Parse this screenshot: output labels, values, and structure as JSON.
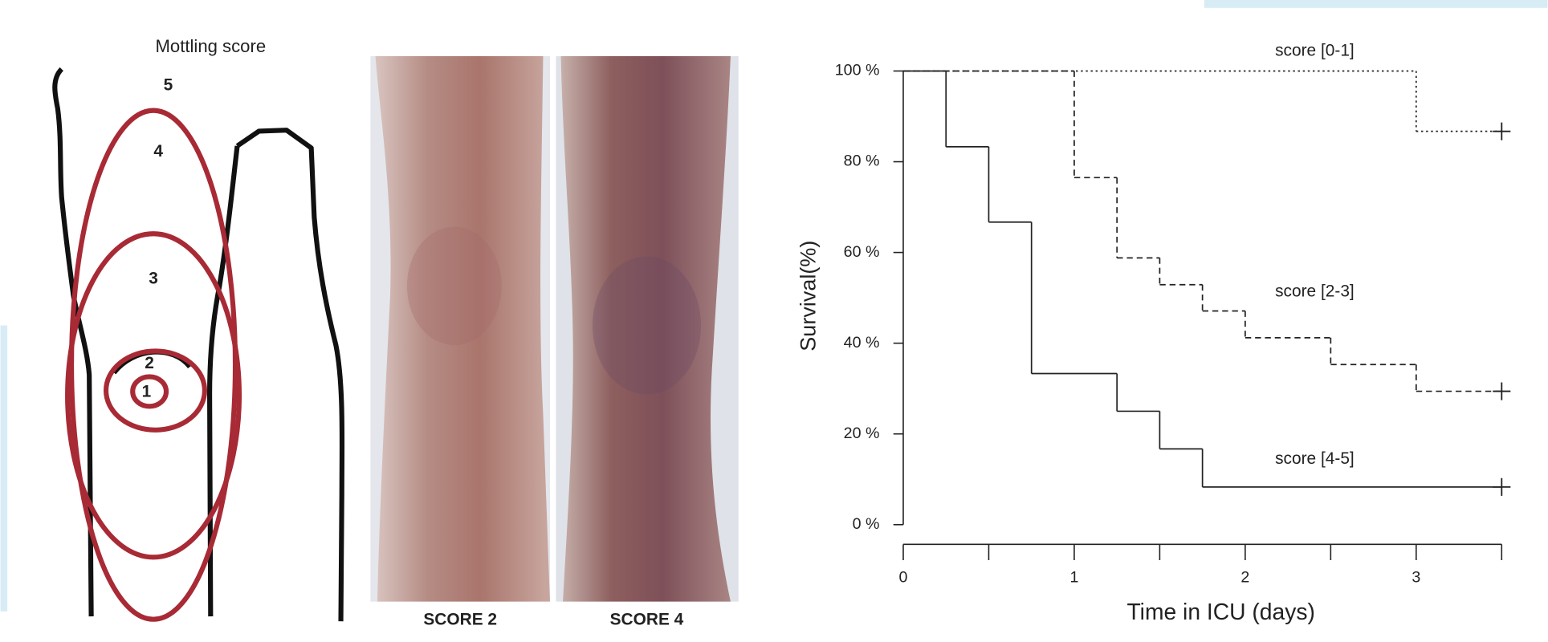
{
  "diagram": {
    "title": "Mottling score",
    "zones": [
      "5",
      "4",
      "3",
      "2",
      "1"
    ]
  },
  "photos": {
    "captions": [
      "SCORE 2",
      "SCORE 4"
    ]
  },
  "chart_data": {
    "type": "step",
    "ylabel": "Survival(%)",
    "xlabel": "Time in ICU (days)",
    "xlim": [
      0,
      3.5
    ],
    "ylim": [
      0,
      100
    ],
    "xticks": [
      0,
      1,
      2,
      3
    ],
    "xminor_ticks": [
      0.5,
      1.5,
      2.5,
      3.5
    ],
    "yticks": [
      {
        "value": 0,
        "label": "0 %"
      },
      {
        "value": 20,
        "label": "20 %"
      },
      {
        "value": 40,
        "label": "40 %"
      },
      {
        "value": 60,
        "label": "60 %"
      },
      {
        "value": 80,
        "label": "80 %"
      },
      {
        "value": 100,
        "label": "100 %"
      }
    ],
    "series": [
      {
        "name": "score [0-1]",
        "color": "#222",
        "dash": "dotted",
        "x": [
          0,
          3,
          3.5
        ],
        "values": [
          100,
          86.7,
          86.7
        ]
      },
      {
        "name": "score [2-3]",
        "color": "#222",
        "dash": "dashed",
        "x": [
          0,
          1,
          1.25,
          1.5,
          1.75,
          2,
          2.5,
          3,
          3.5
        ],
        "values": [
          100,
          76.5,
          58.8,
          52.9,
          47.1,
          41.2,
          35.3,
          29.4,
          29.4
        ]
      },
      {
        "name": "score [4-5]",
        "color": "#222",
        "dash": "solid",
        "x": [
          0,
          0.25,
          0.5,
          0.75,
          1.25,
          1.5,
          1.75,
          3.5
        ],
        "values": [
          100,
          83.3,
          66.7,
          33.3,
          25,
          16.7,
          8.3,
          8.3
        ]
      }
    ]
  }
}
